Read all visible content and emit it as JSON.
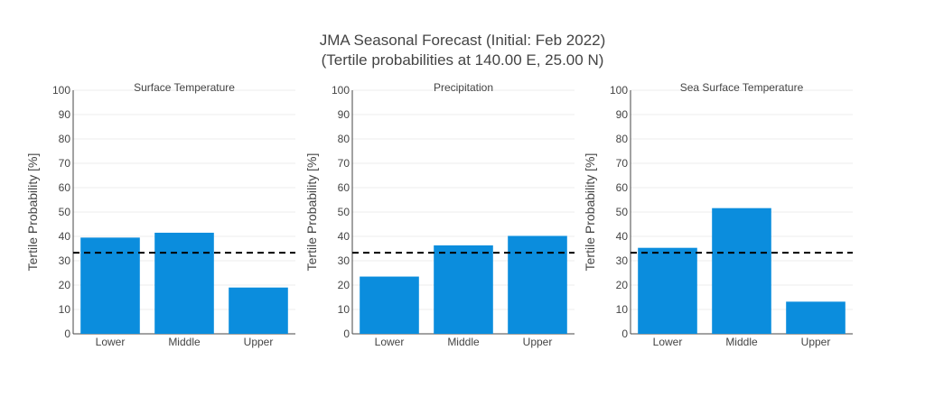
{
  "title_line1": "JMA Seasonal Forecast (Initial: Feb 2022)",
  "title_line2": "(Tertile probabilities at 140.00 E, 25.00 N)",
  "colors": {
    "bar": "#0b8ddd",
    "reference_line": "#000000",
    "grid": "#eeeeee",
    "axis": "#444444"
  },
  "chart_data": [
    {
      "type": "bar",
      "title": "Surface Temperature",
      "categories": [
        "Lower",
        "Middle",
        "Upper"
      ],
      "values": [
        39.5,
        41.5,
        19.0
      ],
      "ylabel": "Tertile Probability [%]",
      "ylim": [
        0,
        100
      ],
      "yticks": [
        0,
        10,
        20,
        30,
        40,
        50,
        60,
        70,
        80,
        90,
        100
      ],
      "reference_line": 33.3,
      "grid": true
    },
    {
      "type": "bar",
      "title": "Precipitation",
      "categories": [
        "Lower",
        "Middle",
        "Upper"
      ],
      "values": [
        23.5,
        36.3,
        40.2
      ],
      "ylabel": "Tertile Probability [%]",
      "ylim": [
        0,
        100
      ],
      "yticks": [
        0,
        10,
        20,
        30,
        40,
        50,
        60,
        70,
        80,
        90,
        100
      ],
      "reference_line": 33.3,
      "grid": true
    },
    {
      "type": "bar",
      "title": "Sea Surface Temperature",
      "categories": [
        "Lower",
        "Middle",
        "Upper"
      ],
      "values": [
        35.3,
        51.6,
        13.2
      ],
      "ylabel": "Tertile Probability [%]",
      "ylim": [
        0,
        100
      ],
      "yticks": [
        0,
        10,
        20,
        30,
        40,
        50,
        60,
        70,
        80,
        90,
        100
      ],
      "reference_line": 33.3,
      "grid": true
    }
  ]
}
